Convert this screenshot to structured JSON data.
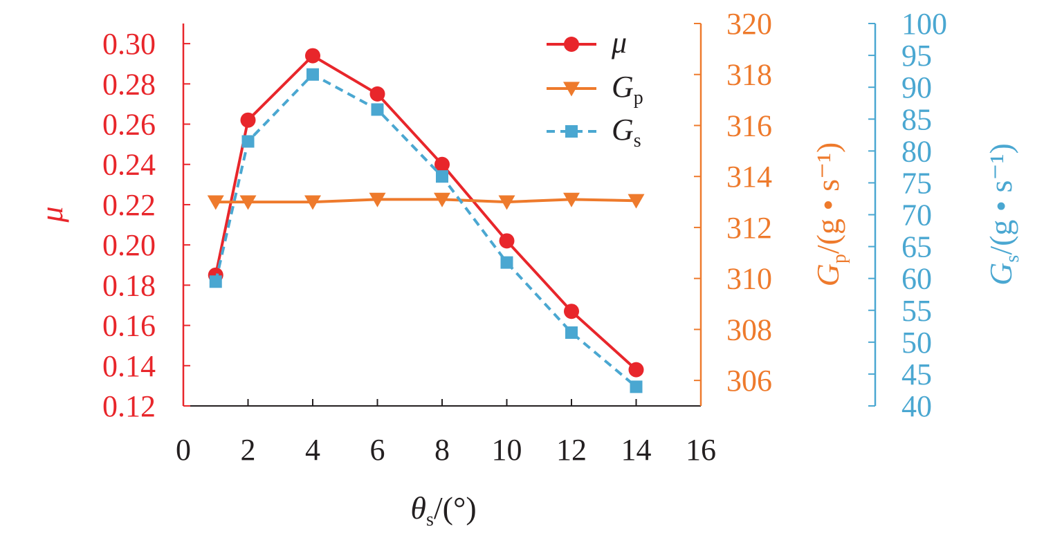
{
  "chart_data": {
    "type": "line",
    "x": [
      1,
      2,
      4,
      6,
      8,
      10,
      12,
      14
    ],
    "xaxis": {
      "range": [
        0,
        16
      ],
      "ticks": [
        "0",
        "2",
        "4",
        "6",
        "8",
        "10",
        "12",
        "14",
        "16"
      ],
      "label_main": "θ",
      "label_sub": "s",
      "label_tail": "/(°)"
    },
    "axes": [
      {
        "id": "mu",
        "label_main": "μ",
        "range": [
          0.12,
          0.31
        ],
        "ticks": [
          "0.12",
          "0.14",
          "0.16",
          "0.18",
          "0.20",
          "0.22",
          "0.24",
          "0.26",
          "0.28",
          "0.30"
        ],
        "color": "#e8262b"
      },
      {
        "id": "gp",
        "label_main": "G",
        "label_sub": "p",
        "label_tail": "/(g • s⁻¹)",
        "range": [
          305,
          320
        ],
        "ticks": [
          "306",
          "308",
          "310",
          "312",
          "314",
          "316",
          "318",
          "320"
        ],
        "color": "#ee7a2c"
      },
      {
        "id": "gs",
        "label_main": "G",
        "label_sub": "s",
        "label_tail": "/(g • s⁻¹)",
        "range": [
          40,
          100
        ],
        "ticks": [
          "40",
          "45",
          "50",
          "55",
          "60",
          "65",
          "70",
          "75",
          "80",
          "85",
          "90",
          "95",
          "100"
        ],
        "color": "#4aa7d1"
      }
    ],
    "series": [
      {
        "name_main": "μ",
        "name_sub": "",
        "axis": "mu",
        "marker": "circle",
        "dash": "solid",
        "color": "#e8262b",
        "values": [
          0.185,
          0.262,
          0.294,
          0.275,
          0.24,
          0.202,
          0.167,
          0.138
        ]
      },
      {
        "name_main": "G",
        "name_sub": "p",
        "axis": "gp",
        "marker": "triangle-down",
        "dash": "solid",
        "color": "#ee7a2c",
        "values": [
          313.0,
          313.0,
          313.0,
          313.1,
          313.1,
          313.0,
          313.1,
          313.05
        ]
      },
      {
        "name_main": "G",
        "name_sub": "s",
        "axis": "gs",
        "marker": "square",
        "dash": "dashed",
        "color": "#4aa7d1",
        "values": [
          59.5,
          81.5,
          92.0,
          86.5,
          76.0,
          62.5,
          51.5,
          43.0
        ]
      }
    ],
    "legend_position": "top-right",
    "grid": false
  }
}
